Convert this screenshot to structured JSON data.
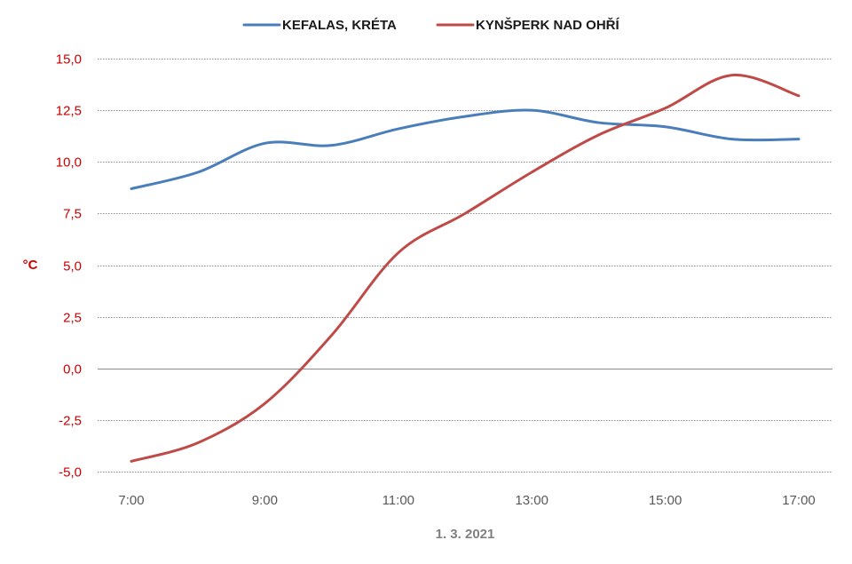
{
  "chart_data": {
    "type": "line",
    "title": "",
    "xlabel": "1. 3. 2021",
    "ylabel": "°C",
    "x": [
      "7:00",
      "8:00",
      "9:00",
      "10:00",
      "11:00",
      "12:00",
      "13:00",
      "14:00",
      "15:00",
      "16:00",
      "17:00"
    ],
    "x_tick_labels": [
      "7:00",
      "9:00",
      "11:00",
      "13:00",
      "15:00",
      "17:00"
    ],
    "y_tick_labels": [
      "15,0",
      "12,5",
      "10,0",
      "7,5",
      "5,0",
      "2,5",
      "0,0",
      "-2,5",
      "-5,0"
    ],
    "ylim": [
      -5,
      15
    ],
    "y_tick_step": 2.5,
    "grid": true,
    "legend_position": "top-center",
    "series": [
      {
        "name": "KEFALAS, KRÉTA",
        "color": "#4a7ebb",
        "values": [
          8.7,
          9.5,
          10.9,
          10.8,
          11.6,
          12.2,
          12.5,
          11.9,
          11.7,
          11.1,
          11.1
        ]
      },
      {
        "name": "KYNŠPERK NAD OHŘÍ",
        "color": "#be4b48",
        "values": [
          -4.5,
          -3.6,
          -1.7,
          1.6,
          5.6,
          7.5,
          9.5,
          11.3,
          12.6,
          14.2,
          13.2
        ]
      }
    ],
    "colors": {
      "y_tick_text": "#cc0000",
      "y_label": "#cc0000",
      "x_tick_text": "#595959",
      "x_label": "#808080",
      "gridline": "#8c8c8c",
      "zero_line": "#8c8c8c"
    }
  }
}
